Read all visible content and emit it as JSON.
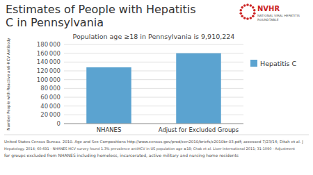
{
  "chart_data": {
    "type": "bar",
    "title": "Estimates of People with Hepatitis\nC in Pennsylvania",
    "subtitle": "Population age ≥18 in Pennsylvania is 9,910,224",
    "ylabel": "Number People with Reactive anti-HCV Antibody",
    "categories": [
      "NHANES",
      "Adjust for Excluded Groups"
    ],
    "series": [
      {
        "name": "Hepatitis C",
        "color": "#5BA3D0",
        "values": [
          128000,
          160000
        ]
      }
    ],
    "ylim": [
      0,
      180000
    ],
    "yticks": [
      0,
      {
        "value": 20000,
        "label": "20 000"
      },
      {
        "value": 40000,
        "label": "40 000"
      },
      {
        "value": 60000,
        "label": "60 000"
      },
      {
        "value": 80000,
        "label": "80 000"
      },
      {
        "value": 100000,
        "label": "100 000"
      },
      {
        "value": 120000,
        "label": "120 000"
      },
      {
        "value": 140000,
        "label": "140 000"
      },
      {
        "value": 160000,
        "label": "160 000"
      },
      {
        "value": 180000,
        "label": "180 000"
      }
    ],
    "grid": true,
    "legend": "right",
    "annotations": [
      "United States Census Bureau. 2010. Age and Sex Compositions http://www.census.gov/prod/cen2010/briefs/c2010br-03.pdf; accessed 7/23/14; Ditah et al. J",
      "Hepatology. 2014; 60:691 - NHANES HCV survey found 1.3% prevalence antiHCV in US population age ≥18; Chak et al. Liver International 2011; 31:1090 - Adjustment",
      "for groups excluded from NHANES including homeless, incarcerated, active military and nursing home residents",
      "NVHR",
      "NATIONAL VIRAL HEPATITIS",
      "ROUNDTABLE"
    ]
  }
}
